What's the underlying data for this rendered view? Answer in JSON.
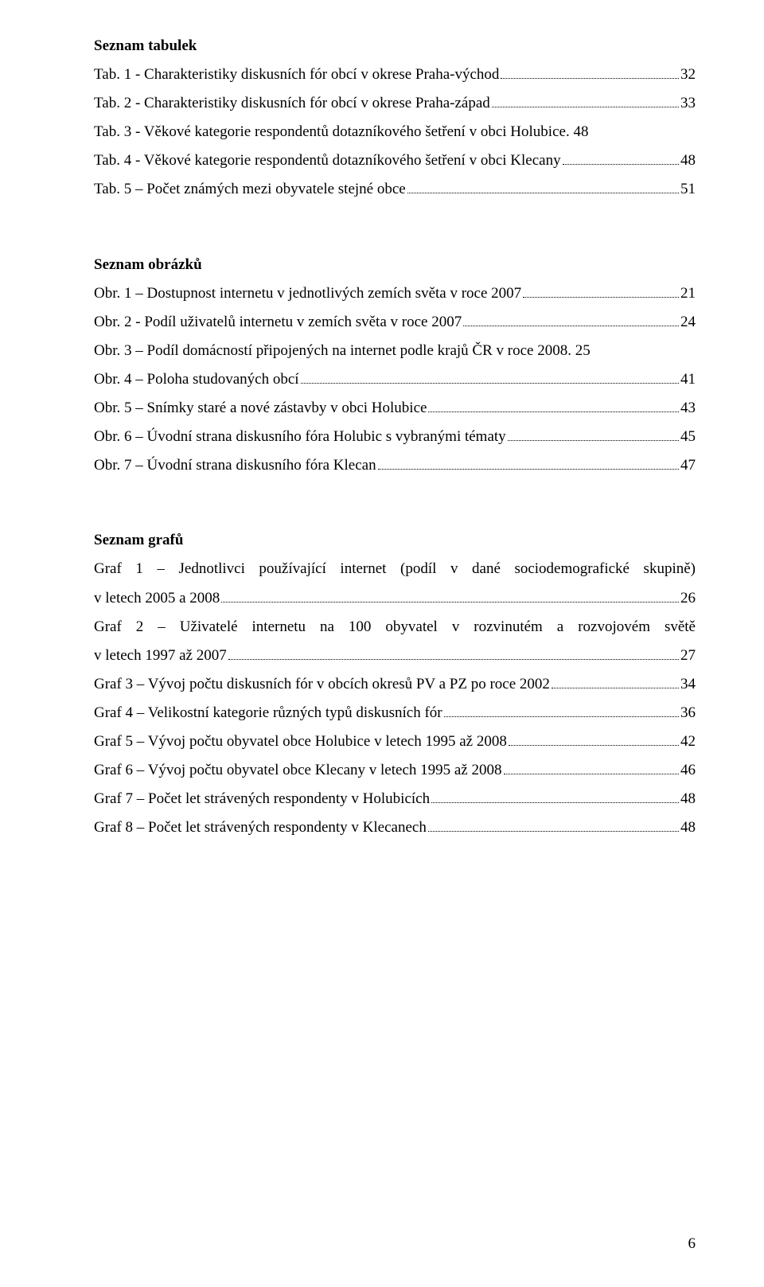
{
  "font": {
    "family": "Times New Roman",
    "body_size_pt": 12,
    "heading_bold": true
  },
  "colors": {
    "text": "#000000",
    "background": "#ffffff",
    "leader": "#000000"
  },
  "page_number": "6",
  "sections": [
    {
      "heading": "Seznam tabulek",
      "entries": [
        {
          "type": "single",
          "text": "Tab. 1 - Charakteristiky diskusních fór obcí v okrese Praha-východ",
          "page": "32"
        },
        {
          "type": "single",
          "text": "Tab. 2 - Charakteristiky diskusních fór obcí v okrese Praha-západ",
          "page": "33"
        },
        {
          "type": "single",
          "text": "Tab. 3 - Věkové kategorie respondentů dotazníkového šetření v obci Holubice",
          "page": ". 48"
        },
        {
          "type": "single",
          "text": "Tab. 4 - Věkové kategorie respondentů dotazníkového šetření v obci Klecany",
          "page": "48"
        },
        {
          "type": "single",
          "text": "Tab. 5 – Počet známých mezi obyvatele stejné obce",
          "page": "51"
        }
      ]
    },
    {
      "heading": "Seznam obrázků",
      "entries": [
        {
          "type": "single",
          "text": "Obr. 1 – Dostupnost internetu v jednotlivých zemích světa v roce 2007",
          "page": "21"
        },
        {
          "type": "single",
          "text": "Obr. 2 - Podíl uživatelů internetu v zemích světa v roce 2007",
          "page": "24"
        },
        {
          "type": "single_nodots",
          "text": "Obr. 3 – Podíl domácností připojených na internet podle krajů ČR v roce 2008. 25"
        },
        {
          "type": "single",
          "text": "Obr. 4 – Poloha studovaných obcí",
          "page": "41"
        },
        {
          "type": "single",
          "text": "Obr. 5 – Snímky staré a nové zástavby v obci Holubice",
          "page": "43"
        },
        {
          "type": "single",
          "text": "Obr. 6 – Úvodní strana diskusního fóra Holubic s vybranými tématy",
          "page": "45"
        },
        {
          "type": "single",
          "text": "Obr. 7 – Úvodní strana diskusního fóra Klecan",
          "page": "47"
        }
      ]
    },
    {
      "heading": "Seznam grafů",
      "entries": [
        {
          "type": "para",
          "first": "Graf 1 – Jednotlivci používající internet (podíl v dané sociodemografické skupině)",
          "tail": "v letech 2005 a 2008",
          "page": "26"
        },
        {
          "type": "para",
          "first": "Graf 2 – Uživatelé internetu na 100 obyvatel v rozvinutém a rozvojovém světě",
          "tail": "v letech 1997 až 2007",
          "page": "27"
        },
        {
          "type": "single",
          "text": "Graf 3 – Vývoj počtu diskusních fór v obcích okresů PV a PZ  po roce 2002",
          "page": "34"
        },
        {
          "type": "single",
          "text": "Graf 4 – Velikostní kategorie různých typů diskusních fór",
          "page": "36"
        },
        {
          "type": "single",
          "text": "Graf 5 – Vývoj počtu obyvatel obce Holubice v letech 1995 až 2008",
          "page": "42"
        },
        {
          "type": "single",
          "text": "Graf 6 – Vývoj počtu obyvatel obce Klecany v letech 1995 až 2008",
          "page": "46"
        },
        {
          "type": "single",
          "text": "Graf 7 – Počet let strávených respondenty v Holubicích",
          "page": "48"
        },
        {
          "type": "single",
          "text": "Graf 8 – Počet let strávených respondenty v Klecanech",
          "page": "48"
        }
      ]
    }
  ]
}
